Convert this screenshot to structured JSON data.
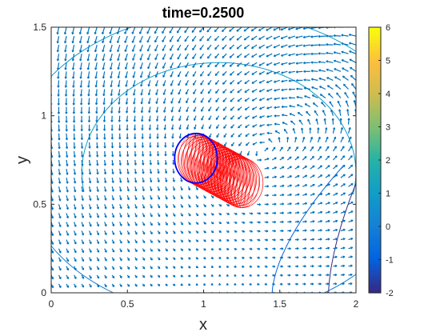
{
  "chart_data": {
    "type": "quiver",
    "title": "time=0.2500",
    "xlabel": "x",
    "ylabel": "y",
    "xlim": [
      0,
      2
    ],
    "ylim": [
      0,
      1.5
    ],
    "xticks": [
      0,
      0.5,
      1,
      1.5,
      2
    ],
    "xtick_labels": [
      "0",
      "0.5",
      "1",
      "1.5",
      "2"
    ],
    "yticks": [
      0,
      0.5,
      1,
      1.5
    ],
    "ytick_labels": [
      "0",
      "0.5",
      "1",
      "1.5"
    ],
    "grid": false,
    "vector_field": {
      "color": "#0072bd",
      "x_range": [
        0,
        2
      ],
      "y_range": [
        0,
        1.5
      ],
      "nx": 41,
      "ny": 31
    },
    "contour_levels": [
      -2,
      -1,
      0,
      1,
      2,
      3
    ],
    "body": {
      "center_a": [
        0.95,
        0.76
      ],
      "center_b": [
        1.25,
        0.62
      ],
      "radius": 0.14,
      "mesh_color": "#ff0000",
      "outline_color": "#0000ff"
    },
    "colorbar": {
      "range": [
        -2,
        6
      ],
      "ticks": [
        -2,
        -1,
        0,
        1,
        2,
        3,
        4,
        5,
        6
      ],
      "tick_labels": [
        "-2",
        "-1",
        "0",
        "1",
        "2",
        "3",
        "4",
        "5",
        "6"
      ],
      "colormap": "parula"
    }
  }
}
